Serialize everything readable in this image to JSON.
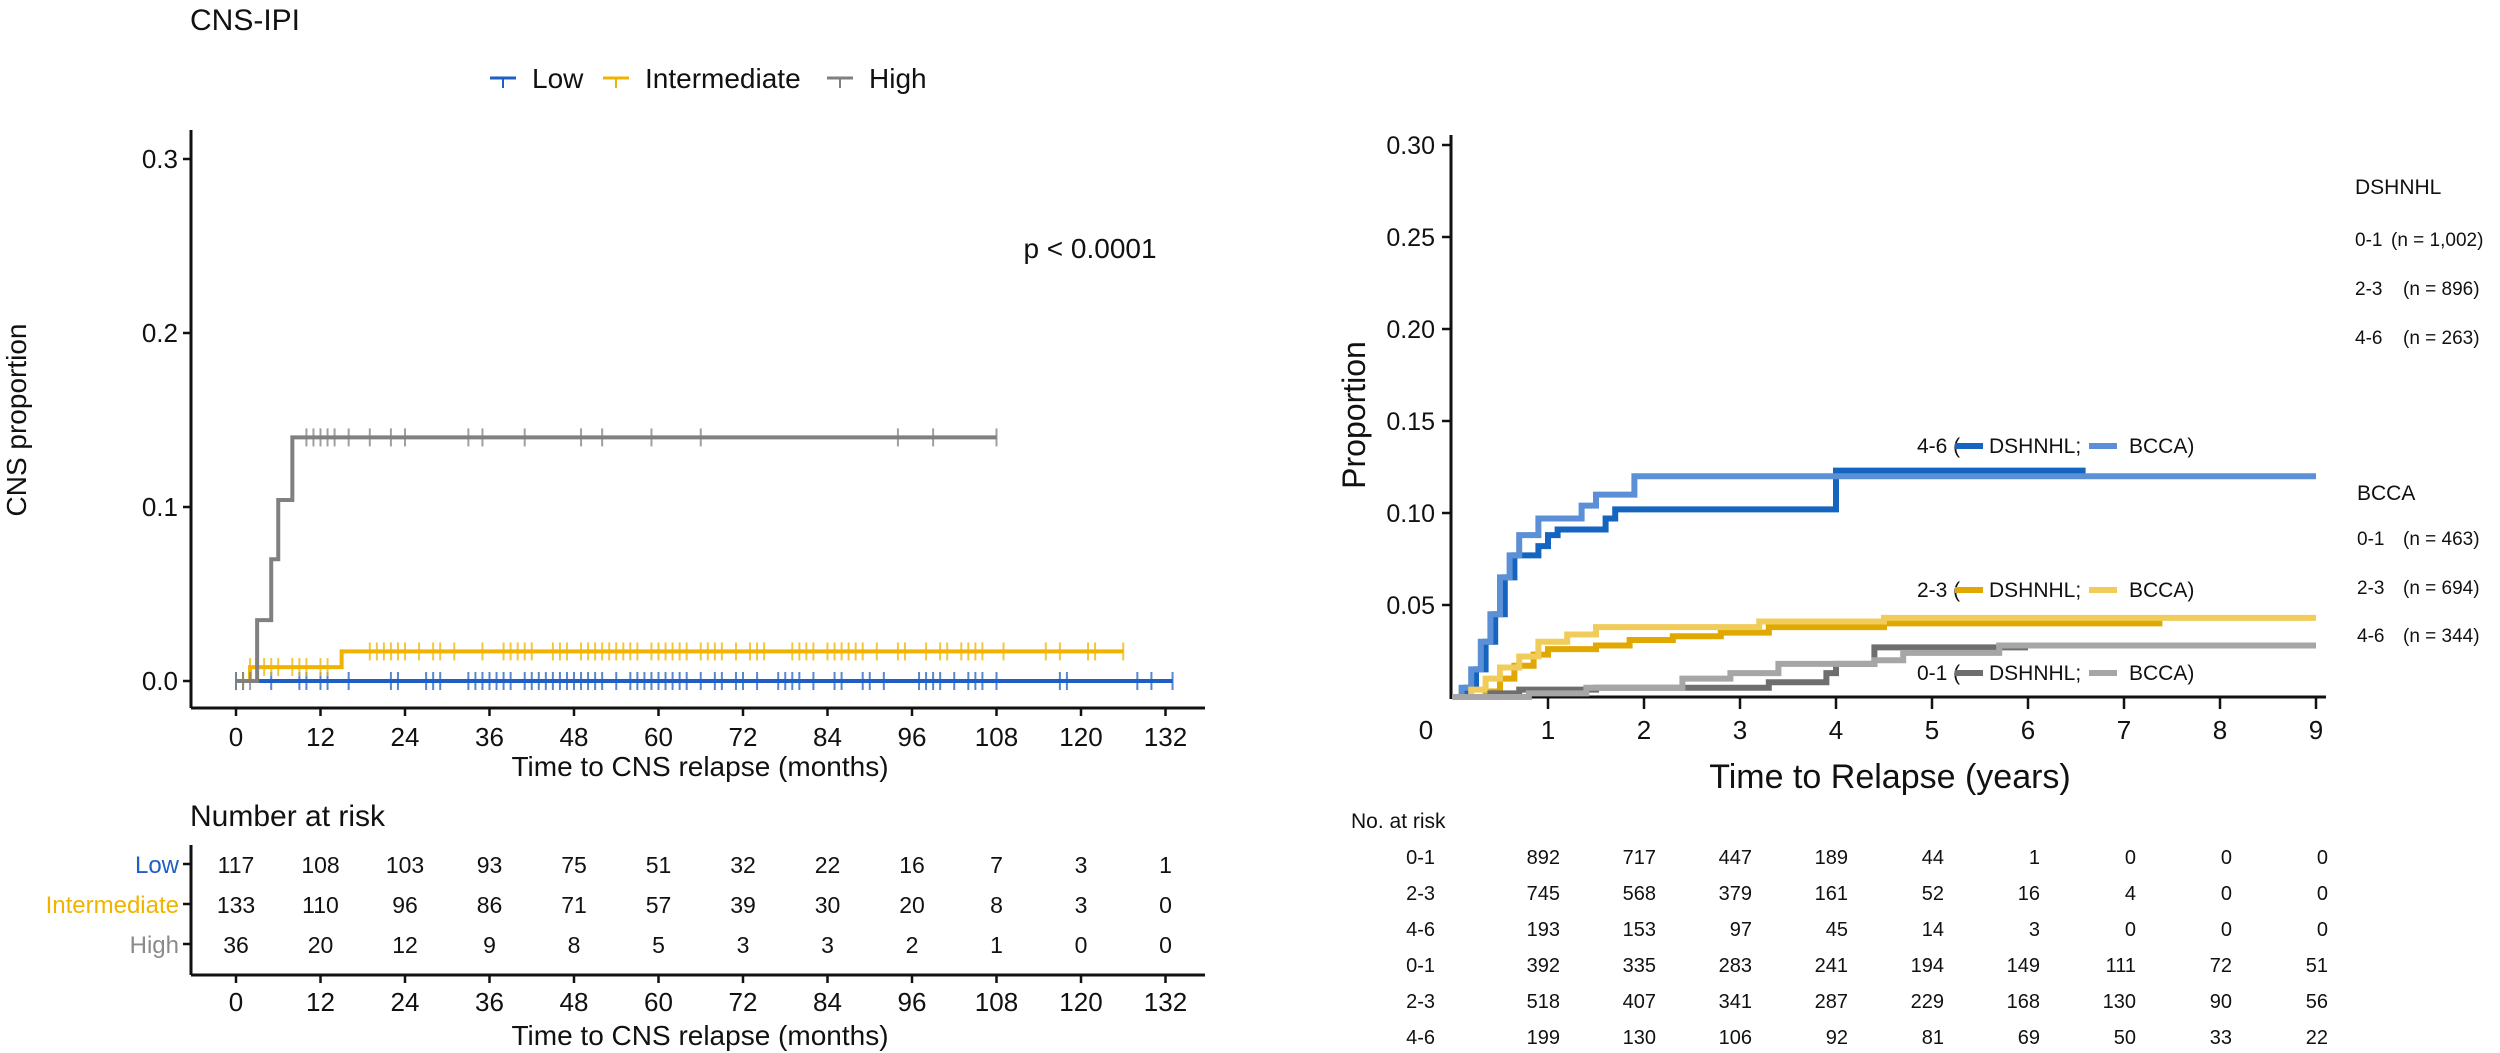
{
  "chart_data": [
    {
      "type": "line",
      "subtype": "cumulative-incidence-step",
      "title": "CNS-IPI",
      "xlabel": "Time to CNS relapse (months)",
      "ylabel": "CNS proportion",
      "xlim": [
        0,
        132
      ],
      "ylim": [
        0,
        0.3
      ],
      "xticks": [
        0,
        12,
        24,
        36,
        48,
        60,
        72,
        84,
        96,
        108,
        120,
        132
      ],
      "yticks": [
        "0.0",
        "0.1",
        "0.2",
        "0.3"
      ],
      "annotation": "p < 0.0001",
      "legend_position": "top",
      "series": [
        {
          "name": "Low",
          "color": "#1f5fc4",
          "steps": [
            [
              0,
              0
            ],
            [
              133,
              0
            ]
          ],
          "censor_times": [
            0,
            1,
            5,
            9,
            10,
            12,
            13,
            16,
            22,
            23,
            27,
            28,
            29,
            33,
            34,
            35,
            36,
            37,
            38,
            39,
            41,
            42,
            43,
            44,
            45,
            46,
            47,
            48,
            49,
            50,
            51,
            52,
            54,
            56,
            57,
            58,
            59,
            60,
            61,
            62,
            63,
            64,
            66,
            68,
            69,
            71,
            72,
            74,
            77,
            78,
            79,
            80,
            82,
            85,
            86,
            89,
            90,
            92,
            97,
            98,
            99,
            100,
            102,
            104,
            105,
            106,
            108,
            117,
            118,
            128,
            130,
            133
          ]
        },
        {
          "name": "Intermediate",
          "color": "#f0b400",
          "steps": [
            [
              0,
              0
            ],
            [
              2,
              0.008
            ],
            [
              15,
              0.017
            ],
            [
              126,
              0.017
            ]
          ],
          "censor_times": [
            1,
            2,
            3,
            4,
            5,
            6,
            8,
            9,
            10,
            12,
            13,
            19,
            20,
            21,
            22,
            23,
            24,
            26,
            28,
            29,
            31,
            35,
            38,
            39,
            40,
            41,
            42,
            45,
            46,
            47,
            49,
            50,
            51,
            52,
            53,
            54,
            55,
            56,
            57,
            59,
            60,
            61,
            62,
            63,
            64,
            66,
            67,
            68,
            69,
            71,
            73,
            74,
            75,
            79,
            80,
            81,
            82,
            84,
            85,
            86,
            87,
            88,
            89,
            91,
            94,
            95,
            98,
            100,
            101,
            103,
            104,
            105,
            106,
            109,
            115,
            117,
            121,
            122,
            126
          ]
        },
        {
          "name": "High",
          "color": "#808080",
          "steps": [
            [
              0,
              0
            ],
            [
              3,
              0.035
            ],
            [
              5,
              0.07
            ],
            [
              6,
              0.104
            ],
            [
              8,
              0.14
            ],
            [
              108,
              0.14
            ]
          ],
          "censor_times": [
            0,
            1,
            2,
            10,
            11,
            12,
            13,
            14,
            16,
            19,
            22,
            24,
            33,
            35,
            41,
            49,
            52,
            59,
            66,
            94,
            99,
            108
          ]
        }
      ],
      "risk_table": {
        "title": "Number at risk",
        "xlabel": "Time to CNS relapse (months)",
        "times": [
          0,
          12,
          24,
          36,
          48,
          60,
          72,
          84,
          96,
          108,
          120,
          132
        ],
        "rows": [
          {
            "label": "Low",
            "color": "#1f5fc4",
            "values": [
              117,
              108,
              103,
              93,
              75,
              51,
              32,
              22,
              16,
              7,
              3,
              1
            ]
          },
          {
            "label": "Intermediate",
            "color": "#f0b400",
            "values": [
              133,
              110,
              96,
              86,
              71,
              57,
              39,
              30,
              20,
              8,
              3,
              0
            ]
          },
          {
            "label": "High",
            "color": "#8a8a8a",
            "values": [
              36,
              20,
              12,
              9,
              8,
              5,
              3,
              3,
              2,
              1,
              0,
              0
            ]
          }
        ]
      }
    },
    {
      "type": "line",
      "subtype": "cumulative-incidence-step",
      "title": "",
      "xlabel": "Time to Relapse (years)",
      "ylabel": "Proportion",
      "xlim": [
        0,
        9
      ],
      "ylim": [
        0,
        0.3
      ],
      "xticks": [
        0,
        1,
        2,
        3,
        4,
        5,
        6,
        7,
        8,
        9
      ],
      "yticks": [
        "0.05",
        "0.10",
        "0.15",
        "0.20",
        "0.25",
        "0.30"
      ],
      "series": [
        {
          "name": "4-6 DSHNHL",
          "group": "4-6",
          "cohort": "DSHNHL",
          "color": "#1565c0",
          "steps": [
            [
              0,
              0
            ],
            [
              0.15,
              0.005
            ],
            [
              0.25,
              0.015
            ],
            [
              0.35,
              0.03
            ],
            [
              0.45,
              0.045
            ],
            [
              0.55,
              0.065
            ],
            [
              0.65,
              0.077
            ],
            [
              0.9,
              0.082
            ],
            [
              1.0,
              0.088
            ],
            [
              1.1,
              0.091
            ],
            [
              1.6,
              0.097
            ],
            [
              1.7,
              0.102
            ],
            [
              4.0,
              0.102
            ],
            [
              4.0,
              0.123
            ],
            [
              6.6,
              0.123
            ]
          ]
        },
        {
          "name": "4-6 BCCA",
          "group": "4-6",
          "cohort": "BCCA",
          "color": "#5b8fd6",
          "steps": [
            [
              0,
              0
            ],
            [
              0.1,
              0.005
            ],
            [
              0.2,
              0.015
            ],
            [
              0.3,
              0.03
            ],
            [
              0.4,
              0.045
            ],
            [
              0.5,
              0.065
            ],
            [
              0.6,
              0.077
            ],
            [
              0.7,
              0.088
            ],
            [
              0.9,
              0.097
            ],
            [
              1.35,
              0.104
            ],
            [
              1.5,
              0.11
            ],
            [
              1.9,
              0.12
            ],
            [
              9.0,
              0.12
            ]
          ]
        },
        {
          "name": "2-3 DSHNHL",
          "group": "2-3",
          "cohort": "DSHNHL",
          "color": "#e0a800",
          "steps": [
            [
              0,
              0
            ],
            [
              0.35,
              0.003
            ],
            [
              0.5,
              0.01
            ],
            [
              0.65,
              0.017
            ],
            [
              0.85,
              0.023
            ],
            [
              1.0,
              0.026
            ],
            [
              1.5,
              0.028
            ],
            [
              1.85,
              0.031
            ],
            [
              2.3,
              0.033
            ],
            [
              2.8,
              0.035
            ],
            [
              3.3,
              0.038
            ],
            [
              4.5,
              0.04
            ],
            [
              7.4,
              0.04
            ]
          ]
        },
        {
          "name": "2-3 BCCA",
          "group": "2-3",
          "cohort": "BCCA",
          "color": "#f0cc5a",
          "steps": [
            [
              0,
              0
            ],
            [
              0.2,
              0.004
            ],
            [
              0.35,
              0.01
            ],
            [
              0.5,
              0.016
            ],
            [
              0.7,
              0.022
            ],
            [
              0.9,
              0.03
            ],
            [
              1.2,
              0.034
            ],
            [
              1.5,
              0.038
            ],
            [
              3.2,
              0.041
            ],
            [
              4.5,
              0.043
            ],
            [
              9.0,
              0.043
            ]
          ]
        },
        {
          "name": "0-1 DSHNHL",
          "group": "0-1",
          "cohort": "DSHNHL",
          "color": "#6e6e6e",
          "steps": [
            [
              0,
              0
            ],
            [
              0.4,
              0.002
            ],
            [
              0.7,
              0.004
            ],
            [
              1.5,
              0.005
            ],
            [
              3.3,
              0.008
            ],
            [
              3.9,
              0.013
            ],
            [
              4.0,
              0.018
            ],
            [
              4.4,
              0.027
            ],
            [
              6.0,
              0.027
            ]
          ]
        },
        {
          "name": "0-1 BCCA",
          "group": "0-1",
          "cohort": "BCCA",
          "color": "#a6a6a6",
          "steps": [
            [
              0,
              0
            ],
            [
              0.8,
              0.002
            ],
            [
              1.4,
              0.005
            ],
            [
              2.4,
              0.01
            ],
            [
              2.9,
              0.013
            ],
            [
              3.4,
              0.018
            ],
            [
              4.4,
              0.02
            ],
            [
              4.7,
              0.024
            ],
            [
              5.7,
              0.028
            ],
            [
              9.0,
              0.028
            ]
          ]
        }
      ],
      "inline_legends": [
        {
          "group": "4-6",
          "text_prefix": "4-6 (",
          "dshnhl_label": "DSHNHL;",
          "bcca_label": "BCCA)",
          "dshnhl_color": "#1565c0",
          "bcca_color": "#5b8fd6"
        },
        {
          "group": "2-3",
          "text_prefix": "2-3 (",
          "dshnhl_label": "DSHNHL;",
          "bcca_label": "BCCA)",
          "dshnhl_color": "#e0a800",
          "bcca_color": "#f0cc5a"
        },
        {
          "group": "0-1",
          "text_prefix": "0-1 (",
          "dshnhl_label": "DSHNHL;",
          "bcca_label": "BCCA)",
          "dshnhl_color": "#6e6e6e",
          "bcca_color": "#a6a6a6"
        }
      ],
      "side_legend": {
        "dshnhl_title": "DSHNHL",
        "dshnhl_items": [
          {
            "group": "0-1",
            "n": "(n = 1,002)"
          },
          {
            "group": "2-3",
            "n": "(n = 896)"
          },
          {
            "group": "4-6",
            "n": "(n = 263)"
          }
        ],
        "bcca_title": "BCCA",
        "bcca_items": [
          {
            "group": "0-1",
            "n": "(n = 463)"
          },
          {
            "group": "2-3",
            "n": "(n = 694)"
          },
          {
            "group": "4-6",
            "n": "(n = 344)"
          }
        ]
      },
      "risk_table": {
        "title": "No. at risk",
        "times": [
          1,
          2,
          3,
          4,
          5,
          6,
          7,
          8,
          9
        ],
        "rows": [
          {
            "label": "0-1",
            "values": [
              892,
              717,
              447,
              189,
              44,
              1,
              0,
              0,
              0
            ]
          },
          {
            "label": "2-3",
            "values": [
              745,
              568,
              379,
              161,
              52,
              16,
              4,
              0,
              0
            ]
          },
          {
            "label": "4-6",
            "values": [
              193,
              153,
              97,
              45,
              14,
              3,
              0,
              0,
              0
            ]
          },
          {
            "label": "0-1",
            "values": [
              392,
              335,
              283,
              241,
              194,
              149,
              111,
              72,
              51
            ]
          },
          {
            "label": "2-3",
            "values": [
              518,
              407,
              341,
              287,
              229,
              168,
              130,
              90,
              56
            ]
          },
          {
            "label": "4-6",
            "values": [
              199,
              130,
              106,
              92,
              81,
              69,
              50,
              33,
              22
            ]
          }
        ]
      }
    }
  ]
}
